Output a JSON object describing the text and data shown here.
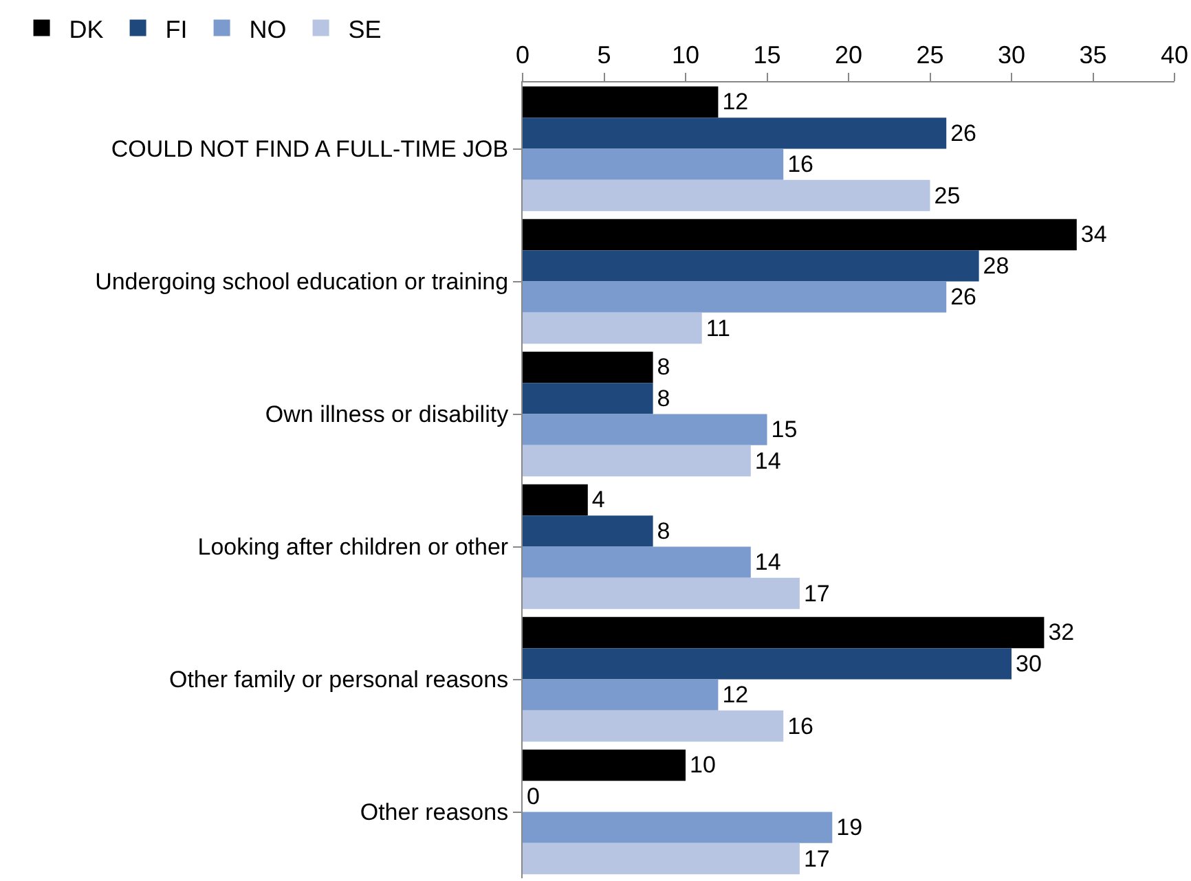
{
  "chart_data": {
    "type": "bar",
    "orientation": "horizontal",
    "categories": [
      "COULD NOT FIND A FULL-TIME JOB",
      "Undergoing school education or training",
      "Own illness or disability",
      "Looking after children or other",
      "Other family or personal reasons",
      "Other reasons"
    ],
    "series": [
      {
        "name": "DK",
        "color": "#000000",
        "values": [
          12,
          34,
          8,
          4,
          32,
          10
        ]
      },
      {
        "name": "FI",
        "color": "#1f497d",
        "values": [
          26,
          28,
          8,
          8,
          30,
          0
        ]
      },
      {
        "name": "NO",
        "color": "#7b9bce",
        "values": [
          16,
          26,
          15,
          14,
          12,
          19
        ]
      },
      {
        "name": "SE",
        "color": "#b7c5e2",
        "values": [
          25,
          11,
          14,
          17,
          16,
          17
        ]
      }
    ],
    "xlim": [
      0,
      40
    ],
    "xticks": [
      0,
      5,
      10,
      15,
      20,
      25,
      30,
      35,
      40
    ],
    "data_labels": true,
    "legend": "top left",
    "grid": false
  }
}
